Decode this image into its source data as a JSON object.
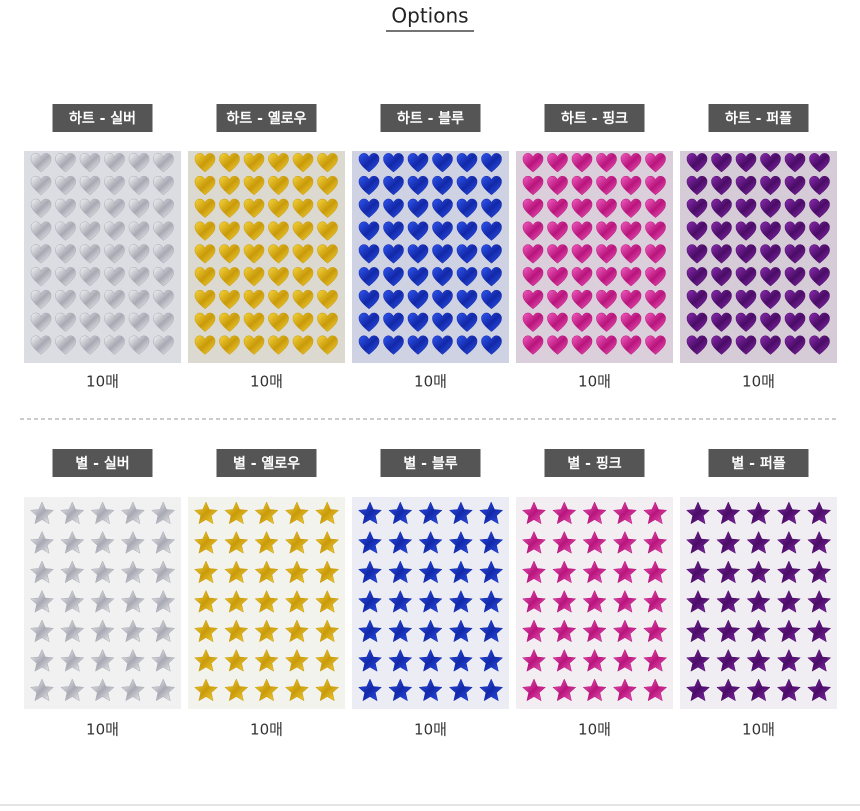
{
  "title": "Options",
  "groups": [
    {
      "items": [
        {
          "label": "하트 - 실버",
          "quantity": "10매"
        },
        {
          "label": "하트 - 옐로우",
          "quantity": "10매"
        },
        {
          "label": "하트 - 블루",
          "quantity": "10매"
        },
        {
          "label": "하트 - 핑크",
          "quantity": "10매"
        },
        {
          "label": "하트 - 퍼플",
          "quantity": "10매"
        }
      ]
    },
    {
      "items": [
        {
          "label": "별 - 실버",
          "quantity": "10매"
        },
        {
          "label": "별 - 옐로우",
          "quantity": "10매"
        },
        {
          "label": "별 - 블루",
          "quantity": "10매"
        },
        {
          "label": "별 - 핑크",
          "quantity": "10매"
        },
        {
          "label": "별 - 퍼플",
          "quantity": "10매"
        }
      ]
    }
  ]
}
